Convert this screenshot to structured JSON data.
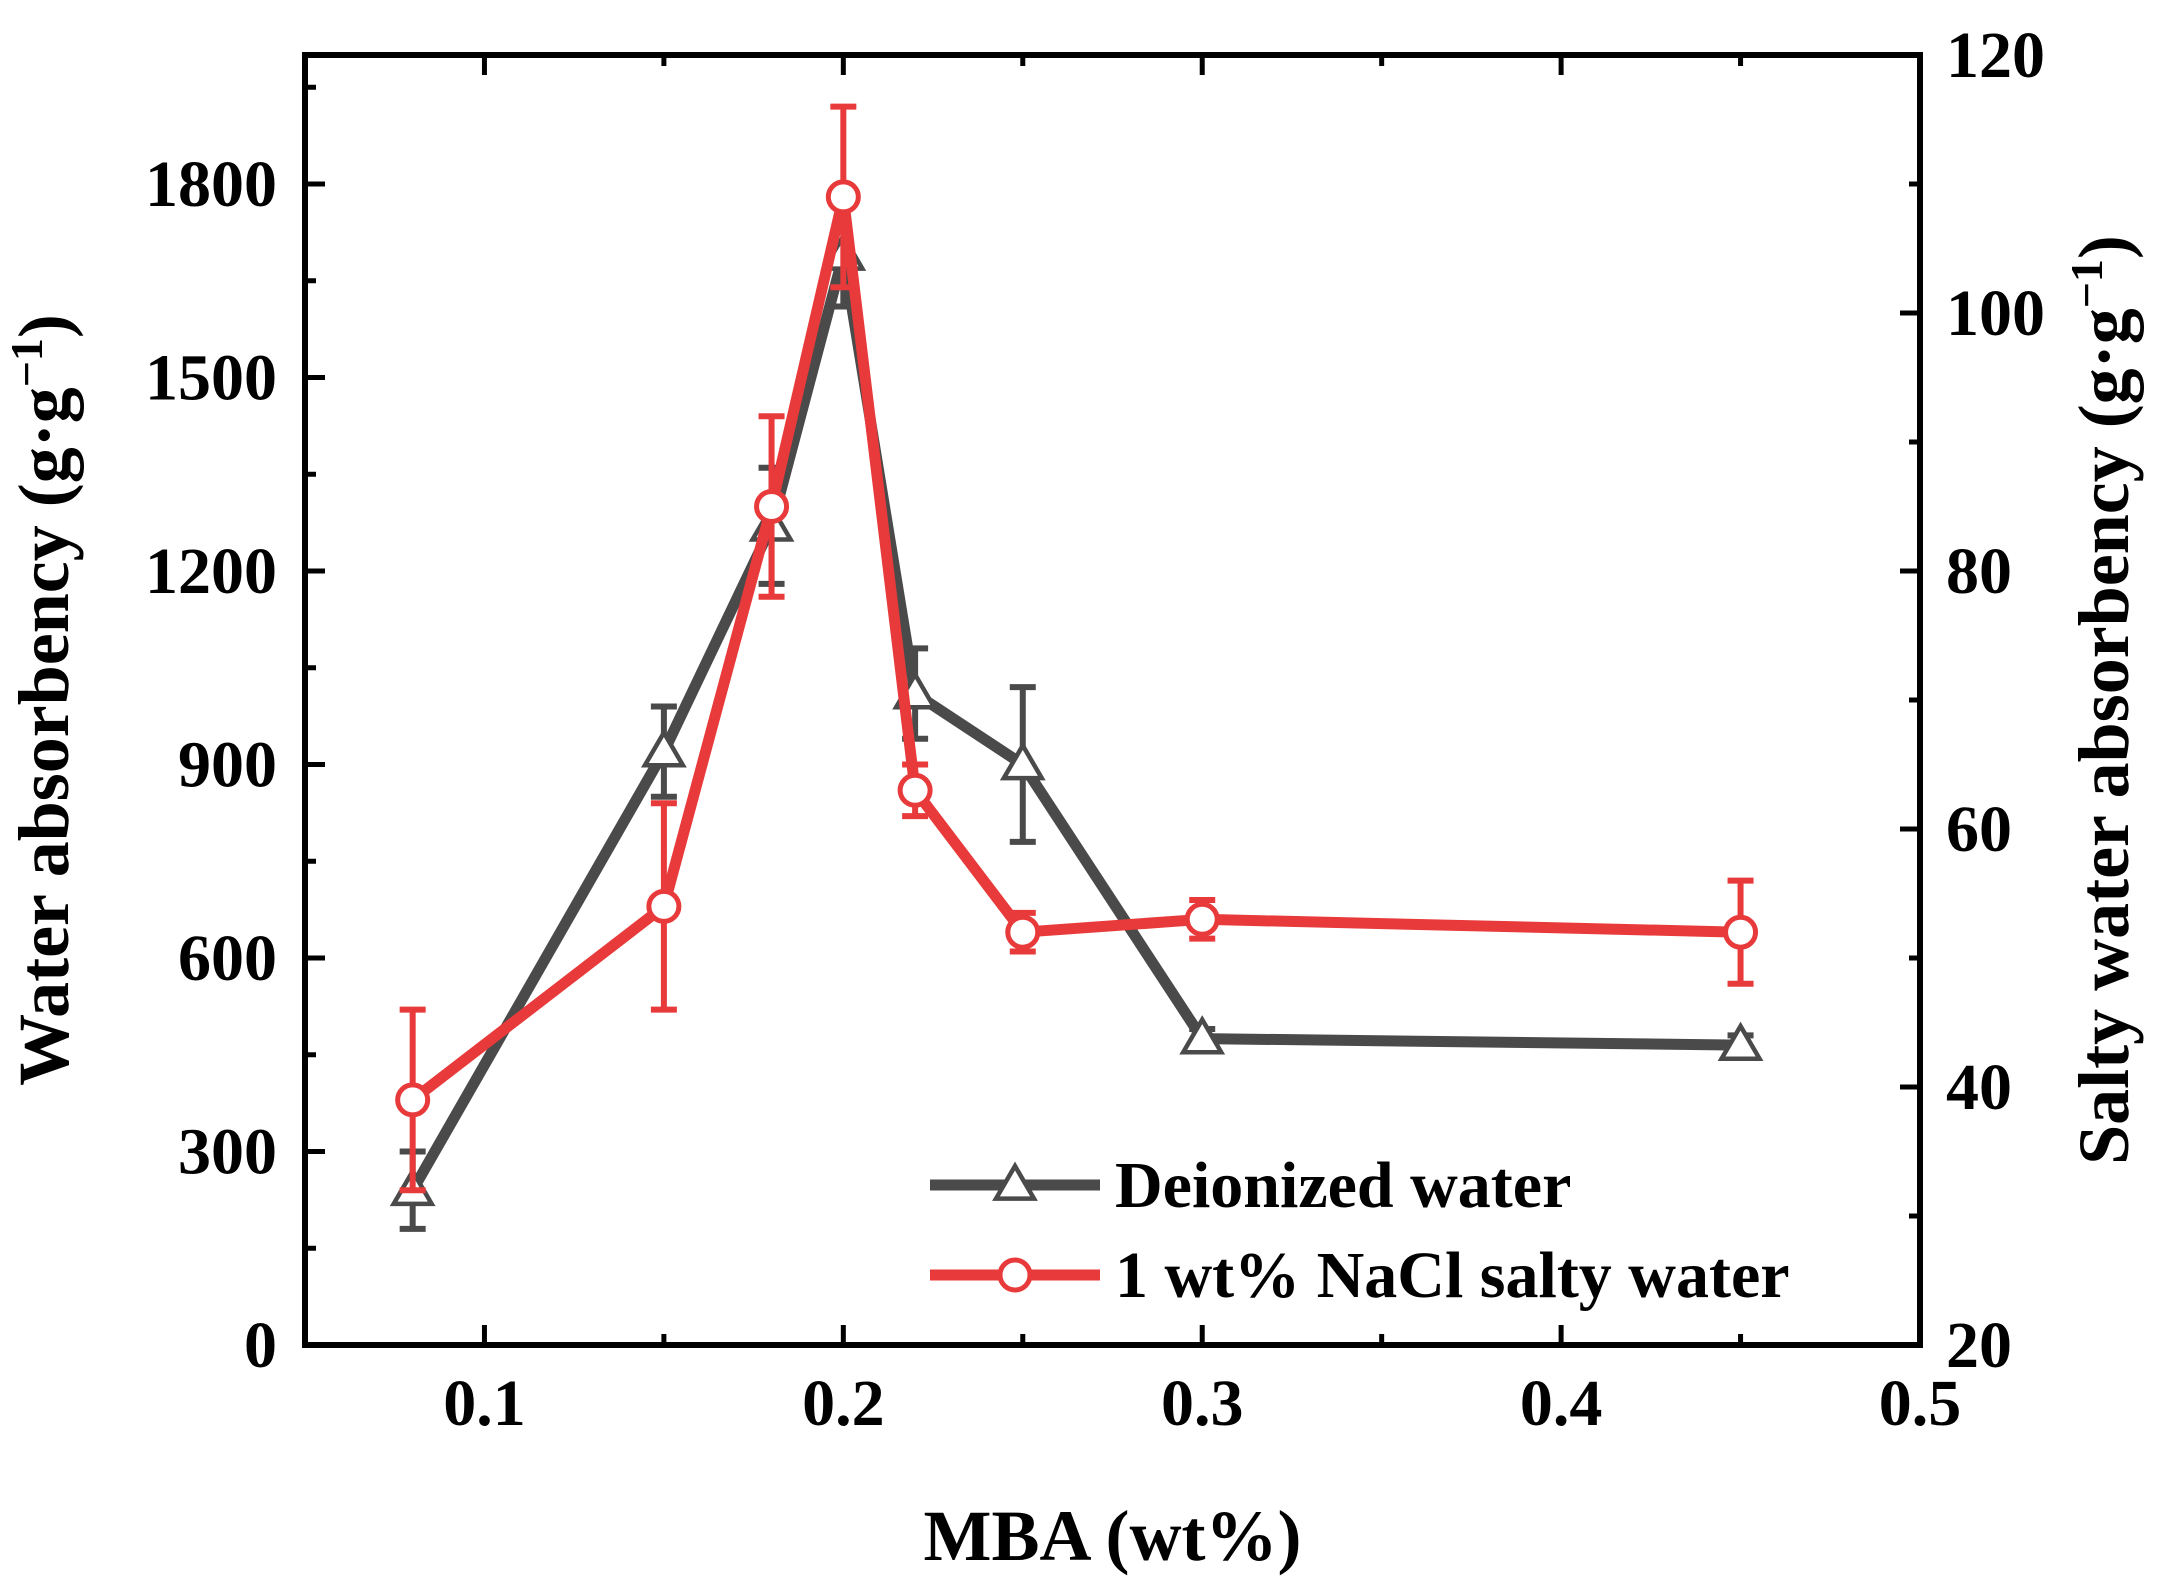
{
  "chart_data": {
    "type": "line",
    "x": [
      0.08,
      0.15,
      0.18,
      0.2,
      0.22,
      0.25,
      0.3,
      0.45
    ],
    "xlabel": "MBA (wt%)",
    "xlim": [
      0.05,
      0.5
    ],
    "xticks": [
      0.1,
      0.2,
      0.3,
      0.4,
      0.5
    ],
    "xtick_labels": [
      "0.1",
      "0.2",
      "0.3",
      "0.4",
      "0.5"
    ],
    "ylabel_left": "Water absorbency (g·g",
    "ylabel_left_sup": "−1",
    "ylabel_left_close": ")",
    "ylim_left": [
      0,
      2000
    ],
    "yticks_left": [
      0,
      300,
      600,
      900,
      1200,
      1500,
      1800
    ],
    "ytick_labels_left": [
      "0",
      "300",
      "600",
      "900",
      "1200",
      "1500",
      "1800"
    ],
    "ylabel_right": "Salty water absorbency (g·g",
    "ylabel_right_sup": "−1",
    "ylabel_right_close": ")",
    "ylim_right": [
      20,
      120
    ],
    "yticks_right": [
      20,
      40,
      60,
      80,
      100,
      120
    ],
    "ytick_labels_right": [
      "20",
      "40",
      "60",
      "80",
      "100",
      "120"
    ],
    "legend_position": "bottom-right",
    "series": [
      {
        "name": "Deionized water",
        "axis": "left",
        "color": "#4a4a4a",
        "marker": "triangle",
        "values": [
          240,
          920,
          1270,
          1690,
          1010,
          900,
          475,
          465
        ],
        "errors": [
          60,
          70,
          90,
          80,
          70,
          120,
          15,
          15
        ]
      },
      {
        "name": "1 wt% NaCl salty water",
        "axis": "right",
        "color": "#e83a3a",
        "marker": "circle",
        "values": [
          39,
          54,
          85,
          109,
          63,
          52,
          53,
          52
        ],
        "errors": [
          7,
          8,
          7,
          7,
          2,
          1.5,
          1.5,
          4
        ]
      }
    ]
  }
}
